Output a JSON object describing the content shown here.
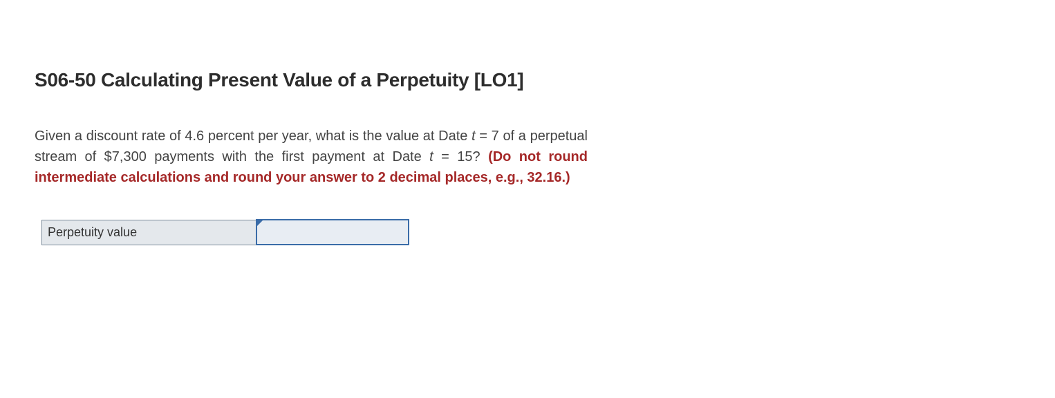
{
  "title": "S06-50 Calculating Present Value of a Perpetuity [LO1]",
  "question": {
    "part1": "Given a discount rate of 4.6 percent per year, what is the value at Date ",
    "var1": "t",
    "eq1": " = 7 of a perpetual stream of $7,300 payments with the first payment at Date ",
    "var2": "t",
    "eq2": " = 15? ",
    "hint": "(Do not round intermediate calculations and round your answer to 2 decimal places, e.g., 32.16.)"
  },
  "answer": {
    "label": "Perpetuity value",
    "value": ""
  },
  "colors": {
    "title": "#2d2d2d",
    "body": "#444444",
    "hint": "#a52828",
    "cell_bg": "#e4e8ec",
    "input_bg": "#e8edf3",
    "input_border": "#3a6ca8",
    "cell_border": "#7a8a99",
    "page_bg": "#ffffff"
  },
  "fonts": {
    "title_size_pt": 21,
    "body_size_pt": 15,
    "title_weight": 700,
    "hint_weight": 700
  }
}
